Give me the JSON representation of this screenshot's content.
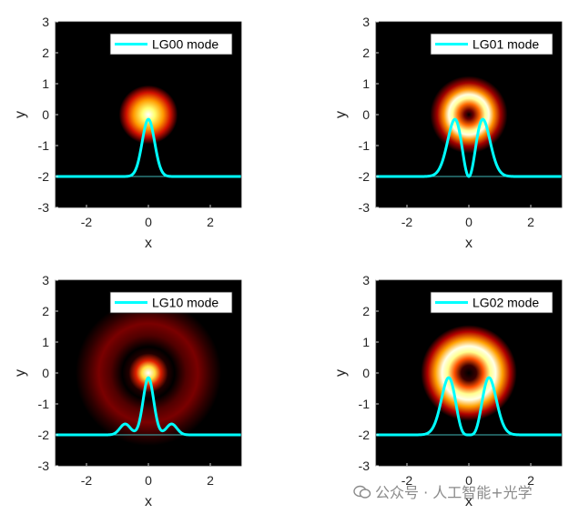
{
  "chart_data": [
    {
      "type": "heatmap",
      "mode": "LG00",
      "legend": "LG00 mode",
      "legend_position": "top-right",
      "xlabel": "x",
      "ylabel": "y",
      "xlim": [
        -3,
        3
      ],
      "ylim": [
        -3,
        3
      ],
      "xticks": [
        -2,
        0,
        2
      ],
      "yticks": [
        -3,
        -2,
        -1,
        0,
        1,
        2,
        3
      ],
      "intensity_peak_radius": 0,
      "profile": {
        "type": "line",
        "color": "#00ffff",
        "baseline": -2,
        "peak_y": -0.15,
        "peaks_x": [
          0
        ]
      }
    },
    {
      "type": "heatmap",
      "mode": "LG01",
      "legend": "LG01 mode",
      "legend_position": "top-right",
      "xlabel": "x",
      "ylabel": "y",
      "xlim": [
        -3,
        3
      ],
      "ylim": [
        -3,
        3
      ],
      "xticks": [
        -2,
        0,
        2
      ],
      "yticks": [
        -3,
        -2,
        -1,
        0,
        1,
        2,
        3
      ],
      "intensity_peak_radius": 0.45,
      "profile": {
        "type": "line",
        "color": "#00ffff",
        "baseline": -2,
        "peak_y": -0.15,
        "peaks_x": [
          -0.45,
          0.45
        ]
      }
    },
    {
      "type": "heatmap",
      "mode": "LG10",
      "legend": "LG10 mode",
      "legend_position": "top-right",
      "xlabel": "x",
      "ylabel": "y",
      "xlim": [
        -3,
        3
      ],
      "ylim": [
        -3,
        3
      ],
      "xticks": [
        -2,
        0,
        2
      ],
      "yticks": [
        -3,
        -2,
        -1,
        0,
        1,
        2,
        3
      ],
      "intensity_peak_radius": 0,
      "profile": {
        "type": "line",
        "color": "#00ffff",
        "baseline": -2,
        "peak_y": -0.15,
        "peaks_x": [
          -0.75,
          0,
          0.75
        ],
        "side_peak_y": -1.65
      }
    },
    {
      "type": "heatmap",
      "mode": "LG02",
      "legend": "LG02 mode",
      "legend_position": "top-right",
      "xlabel": "x",
      "ylabel": "y",
      "xlim": [
        -3,
        3
      ],
      "ylim": [
        -3,
        3
      ],
      "xticks": [
        -2,
        0,
        2
      ],
      "yticks": [
        -3,
        -2,
        -1,
        0,
        1,
        2,
        3
      ],
      "intensity_peak_radius": 0.7,
      "profile": {
        "type": "line",
        "color": "#00ffff",
        "baseline": -2,
        "peak_y": -0.15,
        "peaks_x": [
          -0.65,
          0.65
        ]
      }
    }
  ],
  "watermark": "公众号 · 人工智能+光学",
  "colors": {
    "background": "#000000",
    "profile_line": "#00ffff",
    "colormap": "hot"
  }
}
